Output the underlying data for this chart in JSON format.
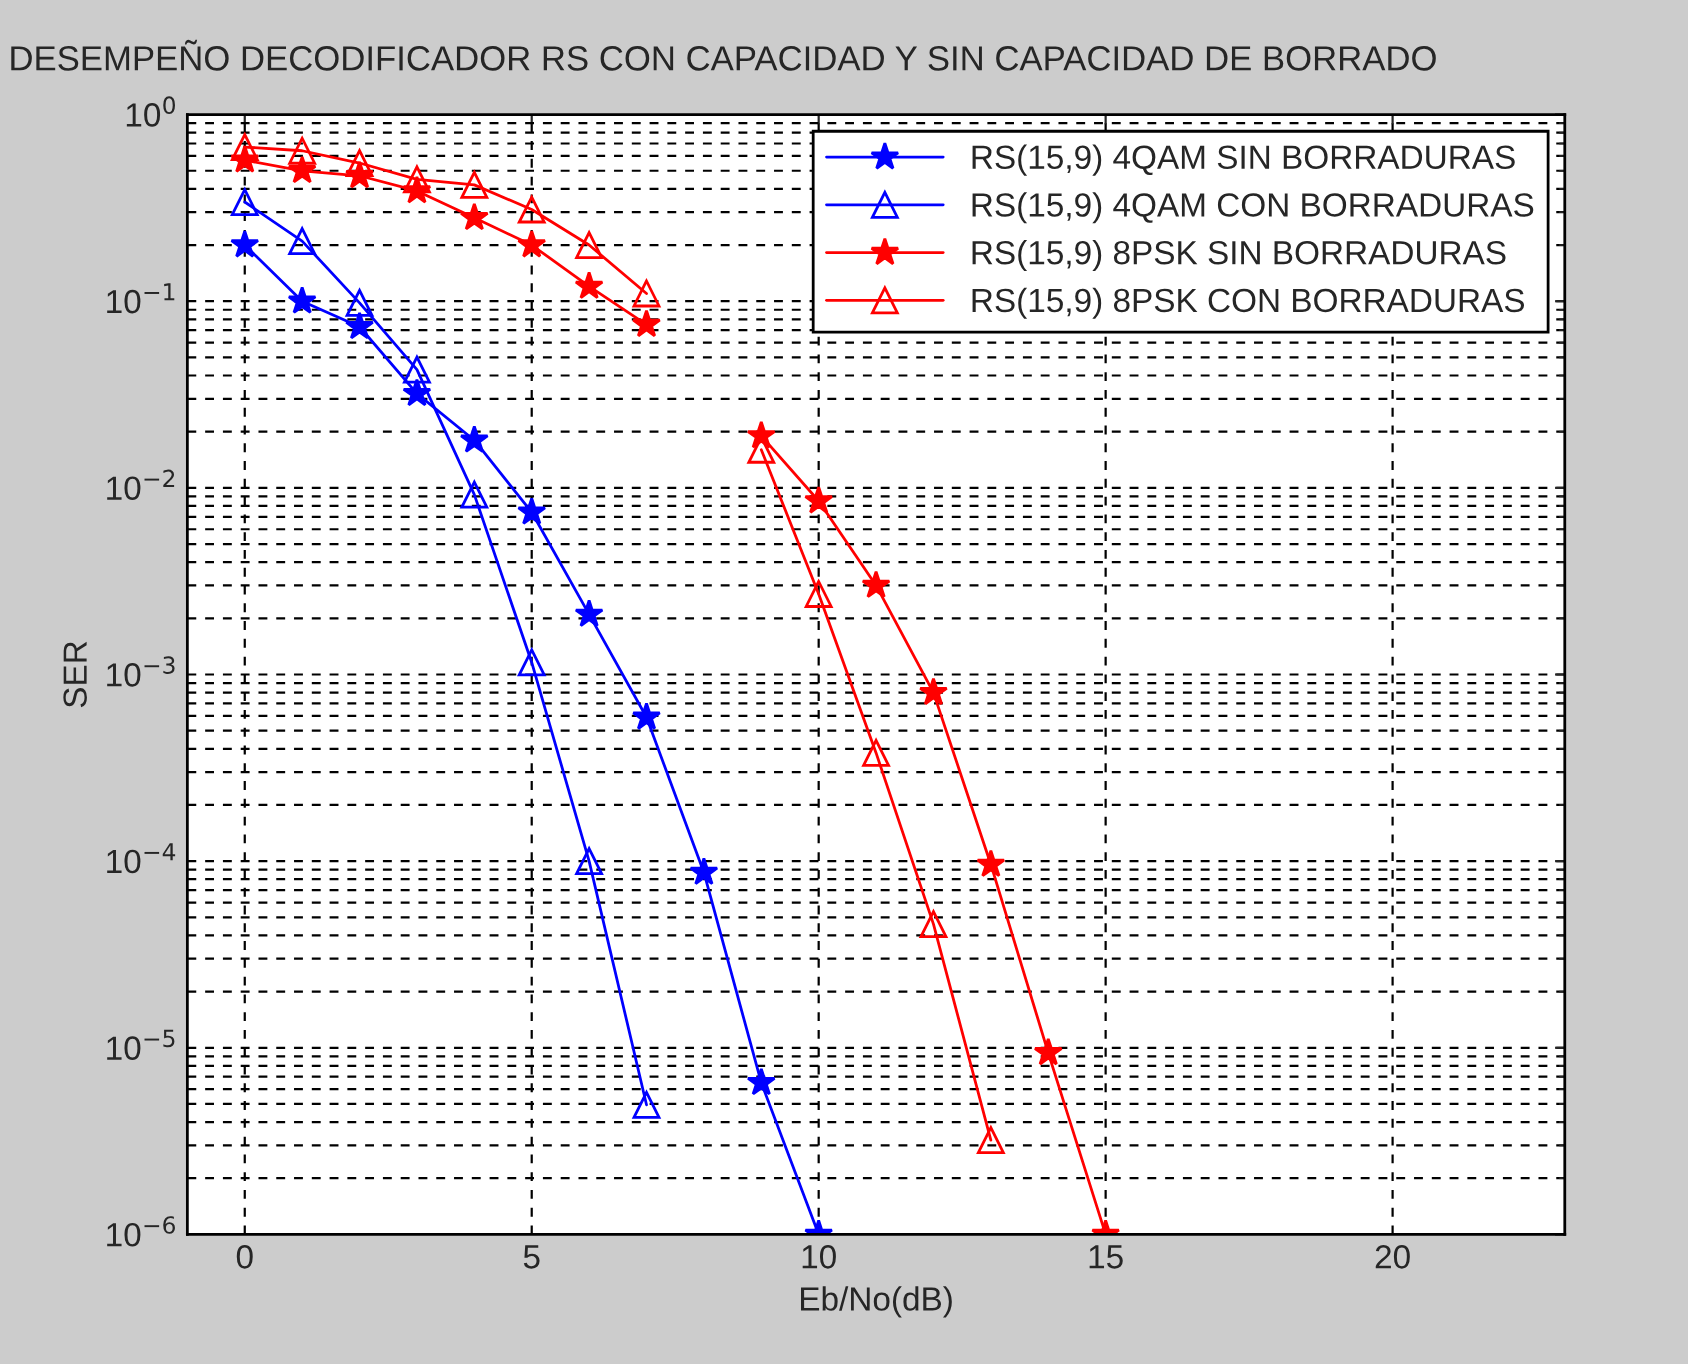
{
  "chart_data": {
    "type": "line",
    "title": "DESEMPEÑO DECODIFICADOR RS CON CAPACIDAD Y SIN CAPACIDAD DE BORRADO",
    "xlabel": "Eb/No(dB)",
    "ylabel": "SER",
    "log": "y",
    "grid": true,
    "legend": "top right",
    "line_style": "solid",
    "xlim": [
      -1,
      23
    ],
    "xticks": [
      0,
      5,
      10,
      15,
      20
    ],
    "ylim": [
      1e-06,
      1
    ],
    "yticks": [
      {
        "value": 1e-06,
        "label": "10$^{−6}$"
      },
      {
        "value": 1e-05,
        "label": "10$^{−5}$"
      },
      {
        "value": 0.0001,
        "label": "10$^{−4}$"
      },
      {
        "value": 0.001,
        "label": "10$^{−3}$"
      },
      {
        "value": 0.01,
        "label": "10$^{−2}$"
      },
      {
        "value": 0.1,
        "label": "10$^{−1}$"
      },
      {
        "value": 1,
        "label": "10$^{0}$"
      }
    ],
    "series": [
      {
        "name": "RS(15,9) 4QAM SIN BORRADURAS",
        "color": "#0000ff",
        "marker": "star",
        "x": [
          0,
          1,
          2,
          3,
          4,
          5,
          6,
          7,
          8,
          9,
          10
        ],
        "values": [
          0.2,
          0.1,
          0.073,
          0.032,
          0.018,
          0.0074,
          0.0021,
          0.00059,
          8.7e-05,
          6.5e-06,
          1e-06
        ]
      },
      {
        "name": "RS(15,9) 4QAM CON BORRADURAS",
        "color": "#0000ff",
        "marker": "triangle",
        "x": [
          0,
          1,
          2,
          3,
          4,
          5,
          6,
          7
        ],
        "values": [
          0.34,
          0.21,
          0.098,
          0.043,
          0.0092,
          0.00116,
          0.0001,
          4.95e-06
        ]
      },
      {
        "name": "RS(15,9) 8PSK SIN BORRADURAS",
        "color": "#ff0000",
        "marker": "star",
        "x": [
          0,
          1,
          2,
          3,
          4,
          5,
          6,
          7,
          8,
          9,
          10,
          11,
          12,
          13,
          14,
          15
        ],
        "values": [
          0.57,
          0.5,
          0.47,
          0.39,
          0.28,
          0.2,
          0.12,
          0.075,
          null,
          0.019,
          0.0085,
          0.003,
          0.0008,
          9.6e-05,
          9.4e-06,
          1e-06
        ]
      },
      {
        "name": "RS(15,9) 8PSK CON BORRADURAS",
        "color": "#ff0000",
        "marker": "triangle",
        "x": [
          0,
          1,
          2,
          3,
          4,
          5,
          6,
          7,
          8,
          9,
          10,
          11,
          12,
          13
        ],
        "values": [
          0.67,
          0.64,
          0.55,
          0.45,
          0.42,
          0.31,
          0.2,
          0.11,
          null,
          0.016,
          0.0027,
          0.00038,
          4.6e-05,
          3.2e-06
        ]
      }
    ]
  }
}
